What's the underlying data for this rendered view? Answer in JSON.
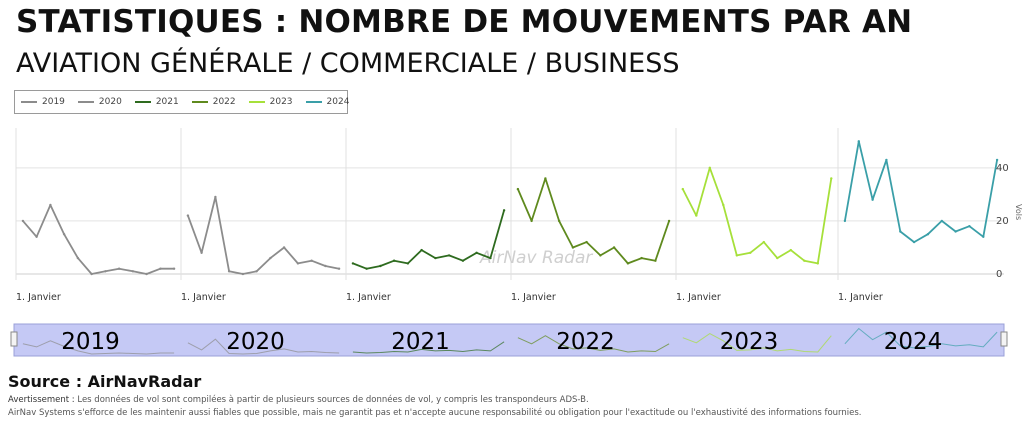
{
  "header": {
    "title": "STATISTIQUES : NOMBRE DE MOUVEMENTS PAR AN",
    "subtitle": "AVIATION GÉNÉRALE / COMMERCIALE / BUSINESS"
  },
  "watermark": "AirNav Radar",
  "navigator_years": [
    "2019",
    "2020",
    "2021",
    "2022",
    "2023",
    "2024"
  ],
  "footer": {
    "source": "Source : AirNavRadar",
    "disclaimer_label": "Avertissement :",
    "disclaimer_1": "Les données de vol sont compilées à partir de plusieurs sources de données de vol, y compris les transpondeurs ADS-B.",
    "disclaimer_2": "AirNav Systems s'efforce de les maintenir aussi fiables que possible, mais ne garantit pas et n'accepte aucune responsabilité ou obligation pour l'exactitude ou l'exhaustivité des informations fournies."
  },
  "colors": {
    "2019": "#8c8c8c",
    "2020": "#8c8c8c",
    "2021": "#2e6b1f",
    "2022": "#5f8a1e",
    "2023": "#a6e03a",
    "2024": "#3a9fa8",
    "navigator_fill": "#c5c9f5",
    "grid": "#e3e3e3"
  },
  "chart_data": {
    "type": "line",
    "ylabel": "Vols",
    "ylim": [
      0,
      55
    ],
    "yticks": [
      0,
      20,
      40
    ],
    "x_tick_label": "1. Janvier",
    "x_ticks": [
      "2019-01-01",
      "2020-01-01",
      "2021-01-01",
      "2022-01-01",
      "2023-01-01",
      "2024-01-01"
    ],
    "legend_position": "top-left",
    "series": [
      {
        "name": "2019",
        "x": [
          "2019-01",
          "2019-02",
          "2019-03",
          "2019-04",
          "2019-05",
          "2019-06",
          "2019-07",
          "2019-08",
          "2019-09",
          "2019-10",
          "2019-11",
          "2019-12"
        ],
        "values": [
          20,
          14,
          26,
          15,
          6,
          0,
          1,
          2,
          1,
          0,
          2,
          2
        ]
      },
      {
        "name": "2020",
        "x": [
          "2020-01",
          "2020-02",
          "2020-03",
          "2020-04",
          "2020-05",
          "2020-06",
          "2020-07",
          "2020-08",
          "2020-09",
          "2020-10",
          "2020-11",
          "2020-12"
        ],
        "values": [
          22,
          8,
          29,
          1,
          0,
          1,
          6,
          10,
          4,
          5,
          3,
          2
        ]
      },
      {
        "name": "2021",
        "x": [
          "2021-01",
          "2021-02",
          "2021-03",
          "2021-04",
          "2021-05",
          "2021-06",
          "2021-07",
          "2021-08",
          "2021-09",
          "2021-10",
          "2021-11",
          "2021-12"
        ],
        "values": [
          4,
          2,
          3,
          5,
          4,
          9,
          6,
          7,
          5,
          8,
          6,
          24
        ]
      },
      {
        "name": "2022",
        "x": [
          "2022-01",
          "2022-02",
          "2022-03",
          "2022-04",
          "2022-05",
          "2022-06",
          "2022-07",
          "2022-08",
          "2022-09",
          "2022-10",
          "2022-11",
          "2022-12"
        ],
        "values": [
          32,
          20,
          36,
          20,
          10,
          12,
          7,
          10,
          4,
          6,
          5,
          20
        ]
      },
      {
        "name": "2023",
        "x": [
          "2023-01",
          "2023-02",
          "2023-03",
          "2023-04",
          "2023-05",
          "2023-06",
          "2023-07",
          "2023-08",
          "2023-09",
          "2023-10",
          "2023-11",
          "2023-12"
        ],
        "values": [
          32,
          22,
          40,
          26,
          7,
          8,
          12,
          6,
          9,
          5,
          4,
          36
        ]
      },
      {
        "name": "2024",
        "x": [
          "2024-01",
          "2024-02",
          "2024-03",
          "2024-04",
          "2024-05",
          "2024-06",
          "2024-07",
          "2024-08",
          "2024-09",
          "2024-10",
          "2024-11",
          "2024-12"
        ],
        "values": [
          20,
          50,
          28,
          43,
          16,
          12,
          15,
          20,
          16,
          18,
          14,
          43
        ]
      }
    ]
  }
}
